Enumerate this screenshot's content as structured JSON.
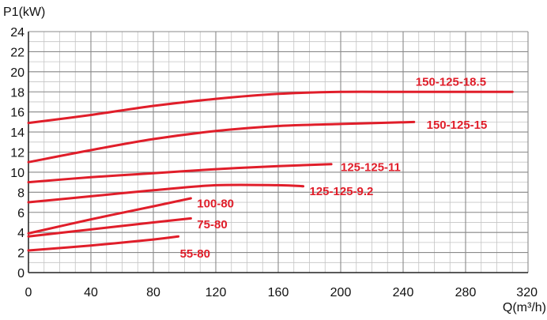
{
  "chart_data": {
    "type": "line",
    "ylabel": "P1(kW)",
    "xlabel": "Q(m³/h)",
    "xlim": [
      0,
      320
    ],
    "ylim": [
      0,
      24
    ],
    "x_ticks": [
      "0",
      "40",
      "80",
      "120",
      "160",
      "200",
      "240",
      "280",
      "320"
    ],
    "y_ticks": [
      "0",
      "2",
      "4",
      "6",
      "8",
      "10",
      "12",
      "14",
      "16",
      "18",
      "20",
      "22",
      "24"
    ],
    "grid": true,
    "line_color": "#e01e2a",
    "series": [
      {
        "name": "150-125-18.5",
        "label_at": [
          248,
          19.0
        ],
        "points": [
          [
            0,
            14.9
          ],
          [
            40,
            15.7
          ],
          [
            80,
            16.6
          ],
          [
            120,
            17.3
          ],
          [
            160,
            17.8
          ],
          [
            200,
            18.0
          ],
          [
            240,
            18.0
          ],
          [
            280,
            18.0
          ],
          [
            310,
            18.0
          ]
        ]
      },
      {
        "name": "150-125-15",
        "label_at": [
          255,
          14.7
        ],
        "points": [
          [
            0,
            11.0
          ],
          [
            40,
            12.2
          ],
          [
            80,
            13.3
          ],
          [
            120,
            14.1
          ],
          [
            160,
            14.6
          ],
          [
            200,
            14.8
          ],
          [
            247,
            15.0
          ]
        ]
      },
      {
        "name": "125-125-11",
        "label_at": [
          200,
          10.5
        ],
        "points": [
          [
            0,
            9.0
          ],
          [
            40,
            9.5
          ],
          [
            80,
            9.9
          ],
          [
            120,
            10.3
          ],
          [
            160,
            10.6
          ],
          [
            194,
            10.8
          ]
        ]
      },
      {
        "name": "125-125-9.2",
        "label_at": [
          180,
          8.1
        ],
        "points": [
          [
            0,
            7.0
          ],
          [
            40,
            7.6
          ],
          [
            80,
            8.2
          ],
          [
            120,
            8.7
          ],
          [
            160,
            8.7
          ],
          [
            176,
            8.6
          ]
        ]
      },
      {
        "name": "100-80",
        "label_at": [
          108,
          6.9
        ],
        "points": [
          [
            0,
            3.9
          ],
          [
            40,
            5.3
          ],
          [
            80,
            6.6
          ],
          [
            104,
            7.4
          ]
        ]
      },
      {
        "name": "75-80",
        "label_at": [
          108,
          4.8
        ],
        "points": [
          [
            0,
            3.6
          ],
          [
            40,
            4.3
          ],
          [
            80,
            5.0
          ],
          [
            104,
            5.4
          ]
        ]
      },
      {
        "name": "55-80",
        "label_at": [
          97,
          1.9
        ],
        "points": [
          [
            0,
            2.2
          ],
          [
            40,
            2.7
          ],
          [
            80,
            3.3
          ],
          [
            96,
            3.6
          ]
        ]
      }
    ]
  }
}
